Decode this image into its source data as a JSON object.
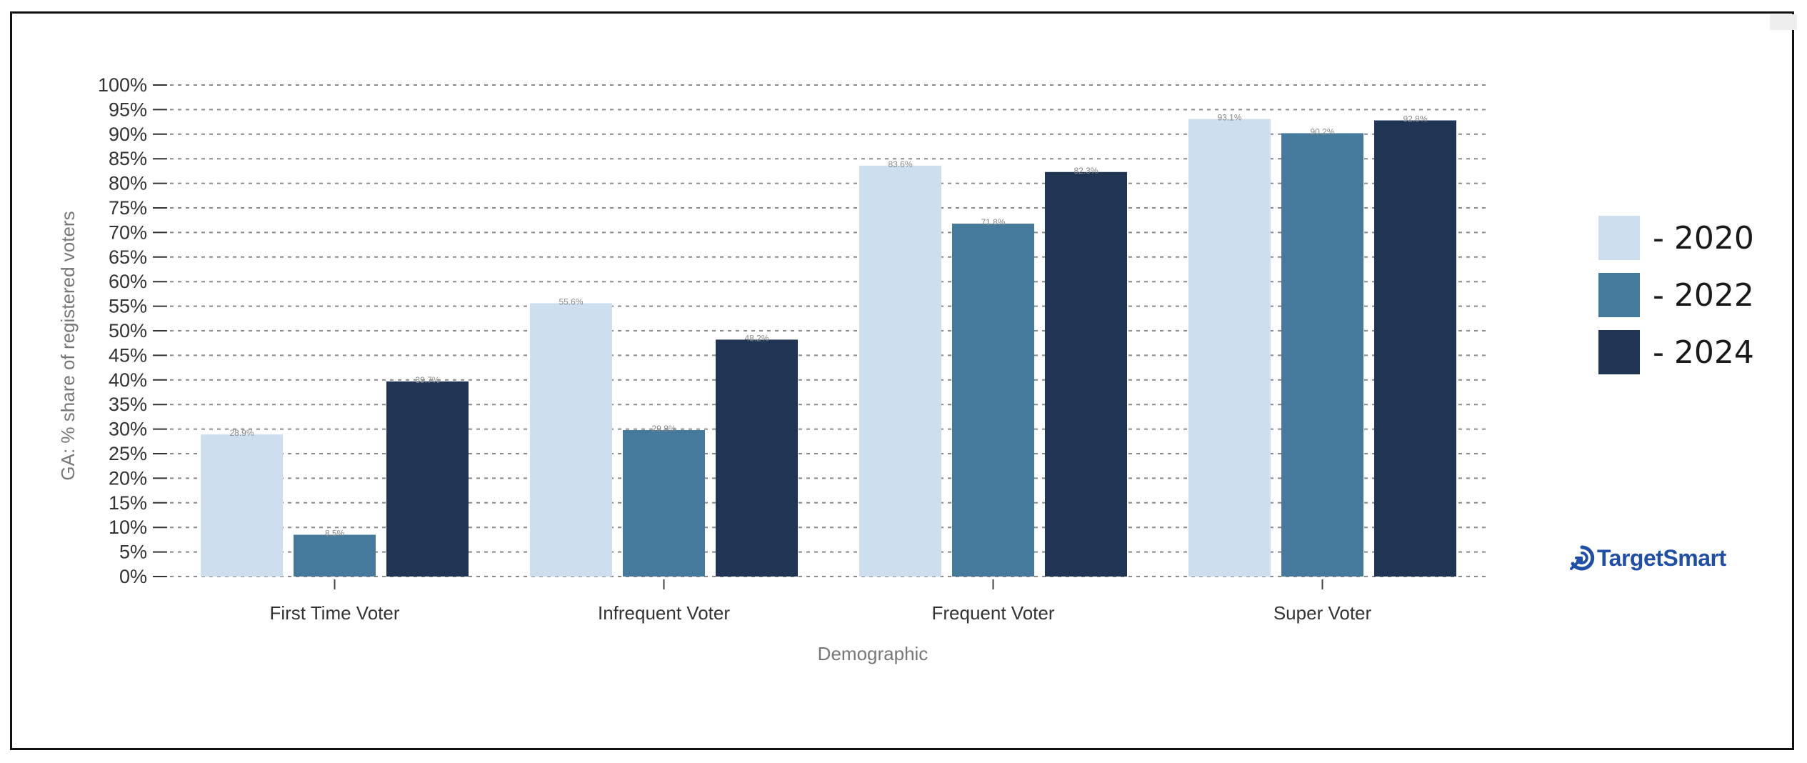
{
  "chart_data": {
    "type": "bar",
    "xlabel": "Demographic",
    "ylabel": "GA: % share of registered voters",
    "ylim": [
      0,
      100
    ],
    "y_ticks": [
      "0%",
      "5%",
      "10%",
      "15%",
      "20%",
      "25%",
      "30%",
      "35%",
      "40%",
      "45%",
      "50%",
      "55%",
      "60%",
      "65%",
      "70%",
      "75%",
      "80%",
      "85%",
      "90%",
      "95%",
      "100%"
    ],
    "categories": [
      "First Time Voter",
      "Infrequent Voter",
      "Frequent Voter",
      "Super Voter"
    ],
    "series": [
      {
        "name": "- 2020",
        "color": "#cddeee",
        "values": [
          28.9,
          55.6,
          83.6,
          93.1
        ],
        "labels": [
          "28.9%",
          "55.6%",
          "83.6%",
          "93.1%"
        ]
      },
      {
        "name": "- 2022",
        "color": "#457a9c",
        "values": [
          8.5,
          29.8,
          71.8,
          90.2
        ],
        "labels": [
          "8.5%",
          "29.8%",
          "71.8%",
          "90.2%"
        ]
      },
      {
        "name": "- 2024",
        "color": "#203453",
        "values": [
          39.7,
          48.2,
          82.3,
          92.8
        ],
        "labels": [
          "39.7%",
          "48.2%",
          "82.3%",
          "92.8%"
        ]
      }
    ],
    "grid": true,
    "legend_position": "right"
  },
  "logo": {
    "text": "TargetSmart",
    "icon": "targetsmart-logo-icon",
    "color": "#1f4fa6"
  }
}
